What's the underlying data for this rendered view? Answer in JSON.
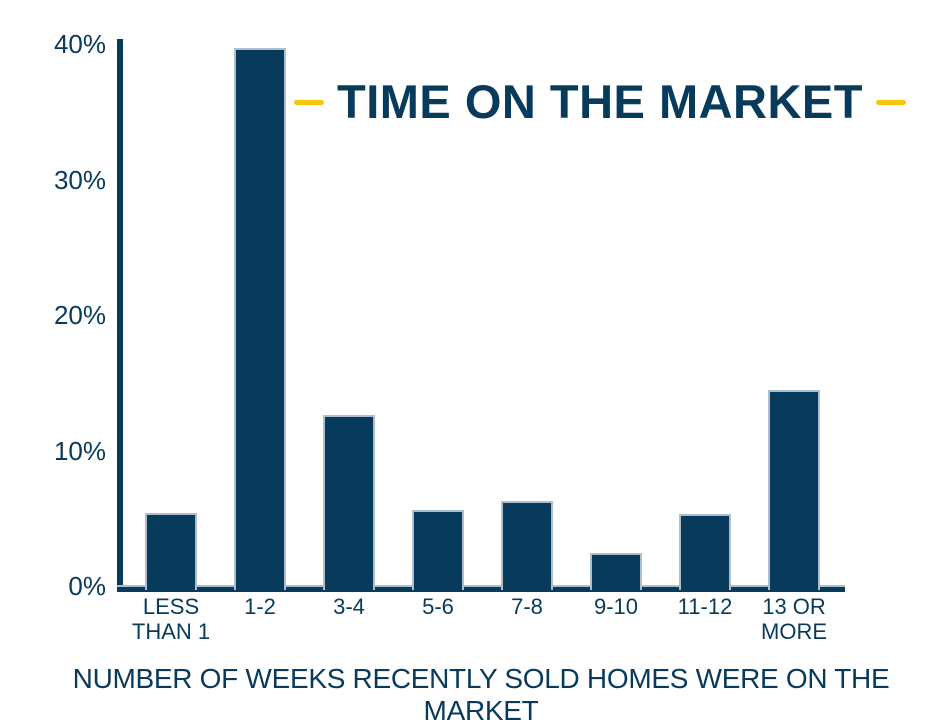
{
  "title": {
    "text": "TIME ON THE MARKET"
  },
  "caption": "NUMBER OF WEEKS RECENTLY SOLD HOMES WERE ON THE MARKET",
  "colors": {
    "navy": "#083a5c",
    "accent_yellow": "#f8c50a",
    "bar_edge": "#aebfcb",
    "background": "#ffffff"
  },
  "chart_data": {
    "type": "bar",
    "title": "TIME ON THE MARKET",
    "categories": [
      "LESS THAN 1",
      "1-2",
      "3-4",
      "5-6",
      "7-8",
      "9-10",
      "11-12",
      "13 OR MORE"
    ],
    "values": [
      5.4,
      39.7,
      12.6,
      5.6,
      6.3,
      2.4,
      5.3,
      14.5
    ],
    "unit": "%",
    "xlabel": "NUMBER OF WEEKS RECENTLY SOLD HOMES WERE ON THE MARKET",
    "ylabel": "",
    "ylim": [
      0,
      40
    ],
    "y_ticks": [
      0,
      10,
      20,
      30,
      40
    ],
    "y_tick_labels": [
      "0%",
      "10%",
      "20%",
      "30%",
      "40%"
    ],
    "grid": false,
    "legend_position": "none",
    "bar_color": "#083a5c",
    "accent_decoration": "yellow dashes flanking title"
  }
}
